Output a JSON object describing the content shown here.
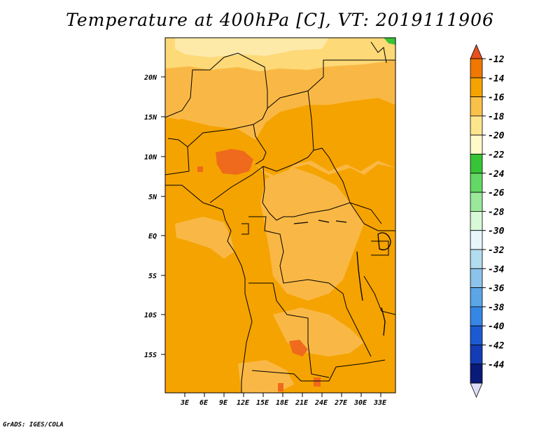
{
  "title": "Temperature at 400hPa [C], VT: 2019111906",
  "credit": "GrADS: IGES/COLA",
  "map": {
    "lat_ticks": [
      "20N",
      "15N",
      "10N",
      "5N",
      "EQ",
      "5S",
      "10S",
      "15S"
    ],
    "lon_ticks": [
      "3E",
      "6E",
      "9E",
      "12E",
      "15E",
      "18E",
      "21E",
      "24E",
      "27E",
      "30E",
      "33E"
    ],
    "dominant_field_color": "#f5a300"
  },
  "colorbar": {
    "labels": [
      "-12",
      "-14",
      "-16",
      "-18",
      "-20",
      "-22",
      "-24",
      "-26",
      "-28",
      "-30",
      "-32",
      "-34",
      "-36",
      "-38",
      "-40",
      "-42",
      "-44"
    ],
    "colors": [
      "#e8501c",
      "#f07800",
      "#f5a300",
      "#f9c04a",
      "#fde58e",
      "#fffac8",
      "#37c437",
      "#64d864",
      "#9ae89a",
      "#d8f8d8",
      "#e6f6fa",
      "#b4dcf0",
      "#8cc3ea",
      "#5aa6e6",
      "#3686e6",
      "#1c5ad2",
      "#143cb4",
      "#0a1a78",
      "#ddddf5"
    ]
  }
}
